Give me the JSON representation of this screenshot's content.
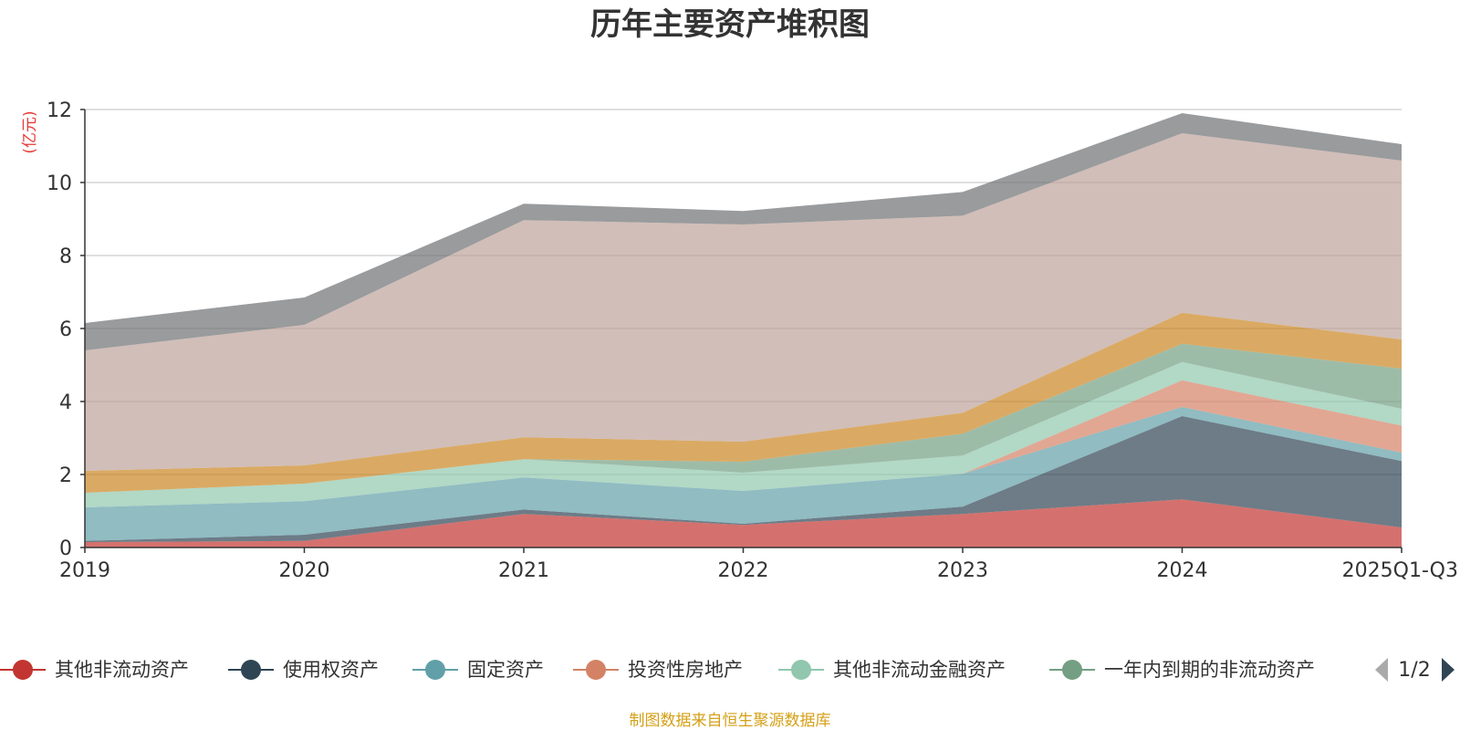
{
  "chart_data": {
    "type": "area",
    "stacked": true,
    "title": "历年主要资产堆积图",
    "unit_label": "(亿元)",
    "categories": [
      "2019",
      "2020",
      "2021",
      "2022",
      "2023",
      "2024",
      "2025Q1-Q3"
    ],
    "ylim": [
      0,
      12
    ],
    "yticks": [
      0,
      2,
      4,
      6,
      8,
      10,
      12
    ],
    "grid": true,
    "series": [
      {
        "name": "其他非流动资产",
        "color": "#c23531",
        "values": [
          0.15,
          0.18,
          0.92,
          0.62,
          0.92,
          1.32,
          0.55
        ],
        "in_legend": true
      },
      {
        "name": "使用权资产",
        "color": "#2f4554",
        "values": [
          0.03,
          0.17,
          0.12,
          0.03,
          0.2,
          2.28,
          1.82
        ],
        "in_legend": true
      },
      {
        "name": "固定资产",
        "color": "#61a0a8",
        "values": [
          0.92,
          0.92,
          0.88,
          0.9,
          0.9,
          0.25,
          0.23
        ],
        "in_legend": true
      },
      {
        "name": "投资性房地产",
        "color": "#d48265",
        "values": [
          0.0,
          0.0,
          0.0,
          0.0,
          0.0,
          0.73,
          0.74
        ],
        "in_legend": true
      },
      {
        "name": "其他非流动金融资产",
        "color": "#91c7ae",
        "values": [
          0.4,
          0.48,
          0.5,
          0.5,
          0.5,
          0.5,
          0.46
        ],
        "in_legend": true
      },
      {
        "name": "一年内到期的非流动资产",
        "color": "#749f83",
        "values": [
          0.0,
          0.0,
          0.0,
          0.3,
          0.6,
          0.5,
          1.1
        ],
        "in_legend": true
      },
      {
        "name": "其他",
        "color": "#ca8622",
        "values": [
          0.6,
          0.5,
          0.6,
          0.55,
          0.57,
          0.85,
          0.8
        ],
        "in_legend": false
      },
      {
        "name": "其他",
        "color": "#bda29a",
        "values": [
          3.3,
          3.85,
          5.95,
          5.95,
          5.4,
          4.92,
          4.9
        ],
        "in_legend": false
      },
      {
        "name": "其他",
        "color": "#6e7074",
        "values": [
          0.75,
          0.75,
          0.45,
          0.37,
          0.65,
          0.55,
          0.45
        ],
        "in_legend": false
      }
    ],
    "legend_page": "1/2",
    "source": "制图数据来自恒生聚源数据库"
  }
}
